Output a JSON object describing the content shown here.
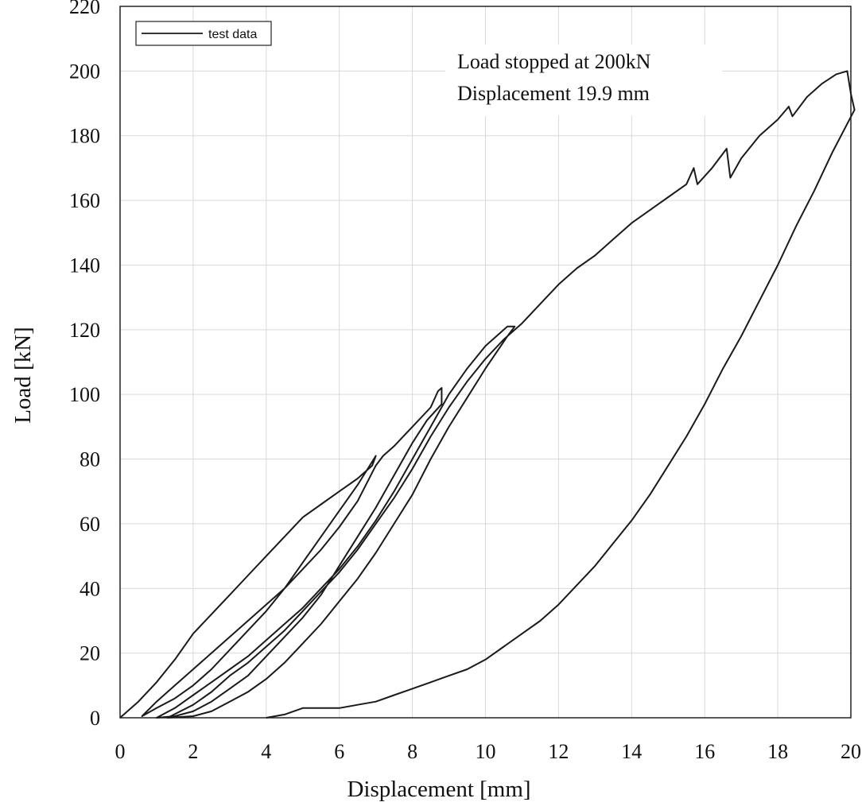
{
  "chart_data": {
    "type": "line",
    "xlabel": "Displacement [mm]",
    "ylabel": "Load [kN]",
    "xlim": [
      0,
      20
    ],
    "ylim": [
      0,
      220
    ],
    "xticks": [
      0,
      2,
      4,
      6,
      8,
      10,
      12,
      14,
      16,
      18,
      20
    ],
    "yticks": [
      0,
      20,
      40,
      60,
      80,
      100,
      120,
      140,
      160,
      180,
      200,
      220
    ],
    "grid": true,
    "legend_position": "top-left",
    "annotation": {
      "lines": [
        "Load stopped at 200kN",
        "Displacement 19.9 mm"
      ]
    },
    "series": [
      {
        "name": "test data",
        "color": "#1a1a1a",
        "points": [
          [
            0.0,
            0.0
          ],
          [
            0.5,
            5.0
          ],
          [
            1.0,
            11.0
          ],
          [
            1.5,
            18.0
          ],
          [
            2.0,
            26.0
          ],
          [
            2.5,
            32.0
          ],
          [
            3.0,
            38.0
          ],
          [
            3.5,
            44.0
          ],
          [
            4.0,
            50.0
          ],
          [
            4.5,
            56.0
          ],
          [
            5.0,
            62.0
          ],
          [
            5.5,
            66.0
          ],
          [
            6.0,
            70.0
          ],
          [
            6.5,
            74.0
          ],
          [
            6.9,
            78.0
          ],
          [
            7.0,
            81.0
          ],
          [
            6.5,
            72.0
          ],
          [
            6.0,
            64.0
          ],
          [
            5.5,
            56.0
          ],
          [
            5.0,
            48.0
          ],
          [
            4.5,
            40.0
          ],
          [
            4.0,
            33.0
          ],
          [
            3.5,
            27.0
          ],
          [
            3.0,
            21.0
          ],
          [
            2.5,
            15.0
          ],
          [
            2.0,
            10.0
          ],
          [
            1.5,
            6.0
          ],
          [
            1.0,
            3.0
          ],
          [
            0.6,
            0.5
          ],
          [
            1.0,
            5.0
          ],
          [
            1.5,
            10.0
          ],
          [
            2.0,
            15.0
          ],
          [
            2.5,
            20.0
          ],
          [
            3.0,
            25.0
          ],
          [
            3.5,
            30.0
          ],
          [
            4.0,
            35.0
          ],
          [
            4.5,
            40.0
          ],
          [
            5.0,
            46.0
          ],
          [
            5.5,
            52.0
          ],
          [
            6.0,
            59.0
          ],
          [
            6.5,
            67.0
          ],
          [
            7.0,
            78.0
          ],
          [
            7.2,
            81.0
          ],
          [
            7.5,
            84.0
          ],
          [
            8.0,
            90.0
          ],
          [
            8.5,
            96.0
          ],
          [
            8.7,
            101.0
          ],
          [
            8.8,
            102.0
          ],
          [
            8.8,
            97.0
          ],
          [
            8.4,
            92.0
          ],
          [
            8.0,
            85.0
          ],
          [
            7.5,
            75.0
          ],
          [
            7.0,
            65.0
          ],
          [
            6.5,
            56.0
          ],
          [
            6.0,
            47.0
          ],
          [
            5.5,
            38.0
          ],
          [
            5.0,
            31.0
          ],
          [
            4.5,
            25.0
          ],
          [
            4.0,
            19.0
          ],
          [
            3.5,
            13.0
          ],
          [
            3.0,
            9.0
          ],
          [
            2.5,
            5.0
          ],
          [
            2.0,
            2.0
          ],
          [
            1.5,
            0.5
          ],
          [
            1.0,
            0.0
          ],
          [
            1.5,
            3.0
          ],
          [
            2.0,
            7.0
          ],
          [
            2.5,
            11.0
          ],
          [
            3.0,
            15.0
          ],
          [
            3.5,
            19.0
          ],
          [
            4.0,
            24.0
          ],
          [
            4.5,
            29.0
          ],
          [
            5.0,
            34.0
          ],
          [
            5.5,
            40.0
          ],
          [
            6.0,
            46.0
          ],
          [
            6.5,
            53.0
          ],
          [
            7.0,
            61.0
          ],
          [
            7.5,
            70.0
          ],
          [
            8.0,
            80.0
          ],
          [
            8.5,
            90.0
          ],
          [
            9.0,
            100.0
          ],
          [
            9.5,
            108.0
          ],
          [
            10.0,
            115.0
          ],
          [
            10.4,
            119.0
          ],
          [
            10.6,
            121.0
          ],
          [
            10.8,
            121.0
          ],
          [
            10.6,
            118.0
          ],
          [
            10.3,
            113.0
          ],
          [
            10.0,
            108.0
          ],
          [
            9.5,
            99.0
          ],
          [
            9.0,
            90.0
          ],
          [
            8.5,
            80.0
          ],
          [
            8.0,
            69.0
          ],
          [
            7.5,
            60.0
          ],
          [
            7.0,
            51.0
          ],
          [
            6.5,
            43.0
          ],
          [
            6.0,
            36.0
          ],
          [
            5.5,
            29.0
          ],
          [
            5.0,
            23.0
          ],
          [
            4.5,
            17.0
          ],
          [
            4.0,
            12.0
          ],
          [
            3.5,
            8.0
          ],
          [
            3.0,
            5.0
          ],
          [
            2.5,
            2.0
          ],
          [
            2.0,
            0.5
          ],
          [
            1.3,
            0.0
          ],
          [
            2.0,
            4.0
          ],
          [
            2.5,
            8.0
          ],
          [
            3.0,
            13.0
          ],
          [
            3.5,
            17.0
          ],
          [
            4.0,
            22.0
          ],
          [
            4.5,
            27.0
          ],
          [
            5.0,
            33.0
          ],
          [
            5.5,
            39.0
          ],
          [
            6.0,
            45.0
          ],
          [
            6.5,
            52.0
          ],
          [
            7.0,
            60.0
          ],
          [
            7.5,
            68.0
          ],
          [
            8.0,
            77.0
          ],
          [
            8.5,
            87.0
          ],
          [
            9.0,
            96.0
          ],
          [
            9.5,
            104.0
          ],
          [
            10.0,
            111.0
          ],
          [
            10.5,
            117.0
          ],
          [
            11.0,
            122.0
          ],
          [
            11.5,
            128.0
          ],
          [
            12.0,
            134.0
          ],
          [
            12.5,
            139.0
          ],
          [
            13.0,
            143.0
          ],
          [
            13.5,
            148.0
          ],
          [
            14.0,
            153.0
          ],
          [
            14.5,
            157.0
          ],
          [
            15.0,
            161.0
          ],
          [
            15.5,
            165.0
          ],
          [
            15.7,
            170.0
          ],
          [
            15.8,
            165.0
          ],
          [
            16.2,
            170.0
          ],
          [
            16.6,
            176.0
          ],
          [
            16.7,
            167.0
          ],
          [
            17.0,
            173.0
          ],
          [
            17.5,
            180.0
          ],
          [
            18.0,
            185.0
          ],
          [
            18.3,
            189.0
          ],
          [
            18.4,
            186.0
          ],
          [
            18.8,
            192.0
          ],
          [
            19.2,
            196.0
          ],
          [
            19.6,
            199.0
          ],
          [
            19.9,
            200.0
          ],
          [
            20.0,
            193.0
          ],
          [
            20.1,
            188.0
          ],
          [
            19.5,
            175.0
          ],
          [
            19.0,
            163.0
          ],
          [
            18.5,
            152.0
          ],
          [
            18.0,
            140.0
          ],
          [
            17.5,
            129.0
          ],
          [
            17.0,
            118.0
          ],
          [
            16.5,
            108.0
          ],
          [
            16.0,
            97.0
          ],
          [
            15.5,
            87.0
          ],
          [
            15.0,
            78.0
          ],
          [
            14.5,
            69.0
          ],
          [
            14.0,
            61.0
          ],
          [
            13.5,
            54.0
          ],
          [
            13.0,
            47.0
          ],
          [
            12.5,
            41.0
          ],
          [
            12.0,
            35.0
          ],
          [
            11.5,
            30.0
          ],
          [
            11.0,
            26.0
          ],
          [
            10.5,
            22.0
          ],
          [
            10.0,
            18.0
          ],
          [
            9.5,
            15.0
          ],
          [
            9.0,
            13.0
          ],
          [
            8.5,
            11.0
          ],
          [
            8.0,
            9.0
          ],
          [
            7.5,
            7.0
          ],
          [
            7.0,
            5.0
          ],
          [
            6.5,
            4.0
          ],
          [
            6.0,
            3.0
          ],
          [
            5.5,
            3.0
          ],
          [
            5.0,
            3.0
          ],
          [
            4.5,
            1.0
          ],
          [
            4.0,
            0.0
          ]
        ]
      }
    ]
  }
}
